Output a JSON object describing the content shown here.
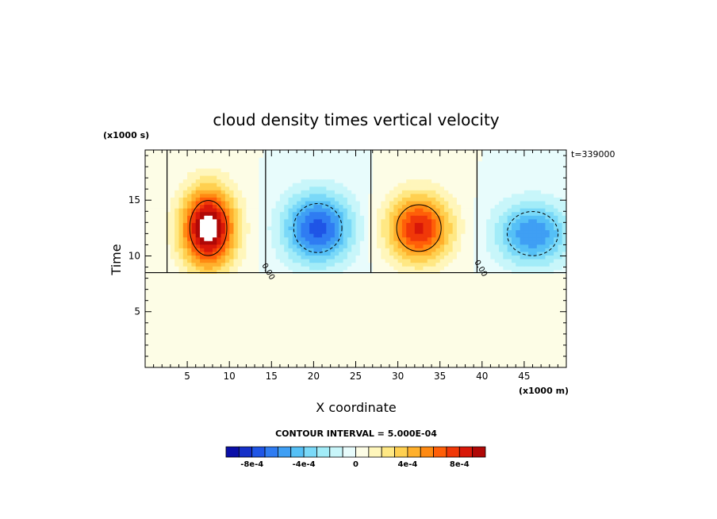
{
  "chart_data": {
    "type": "heatmap",
    "title": "cloud density times vertical velocity",
    "xlabel": "X coordinate",
    "ylabel": "Time",
    "x_units": "(x1000 m)",
    "y_units": "(x1000 s)",
    "time_stamp": "t=339000",
    "xlim": [
      0,
      50
    ],
    "ylim": [
      0,
      19.5
    ],
    "x_ticks": [
      5,
      10,
      15,
      20,
      25,
      30,
      35,
      40,
      45
    ],
    "y_ticks": [
      5,
      10,
      15
    ],
    "contour_interval_text": "CONTOUR INTERVAL = 5.000E-04",
    "contour_label": "0.00",
    "colorbar": {
      "levels": [
        -0.001,
        -0.0009,
        -0.0008,
        -0.0007,
        -0.0006,
        -0.0005,
        -0.0004,
        -0.0003,
        -0.0002,
        -0.0001,
        0,
        0.0001,
        0.0002,
        0.0003,
        0.0004,
        0.0005,
        0.0006,
        0.0007,
        0.0008,
        0.0009,
        0.001
      ],
      "tick_labels": [
        "-8e-4",
        "-4e-4",
        "0",
        "4e-4",
        "8e-4"
      ],
      "tick_values": [
        -0.0008,
        -0.0004,
        0,
        0.0004,
        0.0008
      ],
      "colors": [
        "#0a0fa8",
        "#1530c8",
        "#1f55e6",
        "#2f7cf2",
        "#3f9ff4",
        "#55c0f6",
        "#7ad9f8",
        "#a2ecf8",
        "#c8f6fa",
        "#e8fcfc",
        "#fdfde6",
        "#fff6bb",
        "#ffe884",
        "#ffd050",
        "#ffb02c",
        "#ff8a12",
        "#ff5f08",
        "#f03808",
        "#d81808",
        "#b00806"
      ]
    },
    "features": [
      {
        "kind": "updraft",
        "x": 7.5,
        "y": 12.5,
        "rx": 4.0,
        "ry": 4.5,
        "amp": 0.0011
      },
      {
        "kind": "downdraft",
        "x": 20.5,
        "y": 12.5,
        "rx": 5.2,
        "ry": 4.0,
        "amp": -0.00075
      },
      {
        "kind": "updraft",
        "x": 32.5,
        "y": 12.5,
        "rx": 4.8,
        "ry": 3.8,
        "amp": 0.00082
      },
      {
        "kind": "downdraft",
        "x": 46.0,
        "y": 12.0,
        "rx": 5.5,
        "ry": 3.6,
        "amp": -0.0006
      }
    ],
    "cloud_base_time": 8.5
  }
}
